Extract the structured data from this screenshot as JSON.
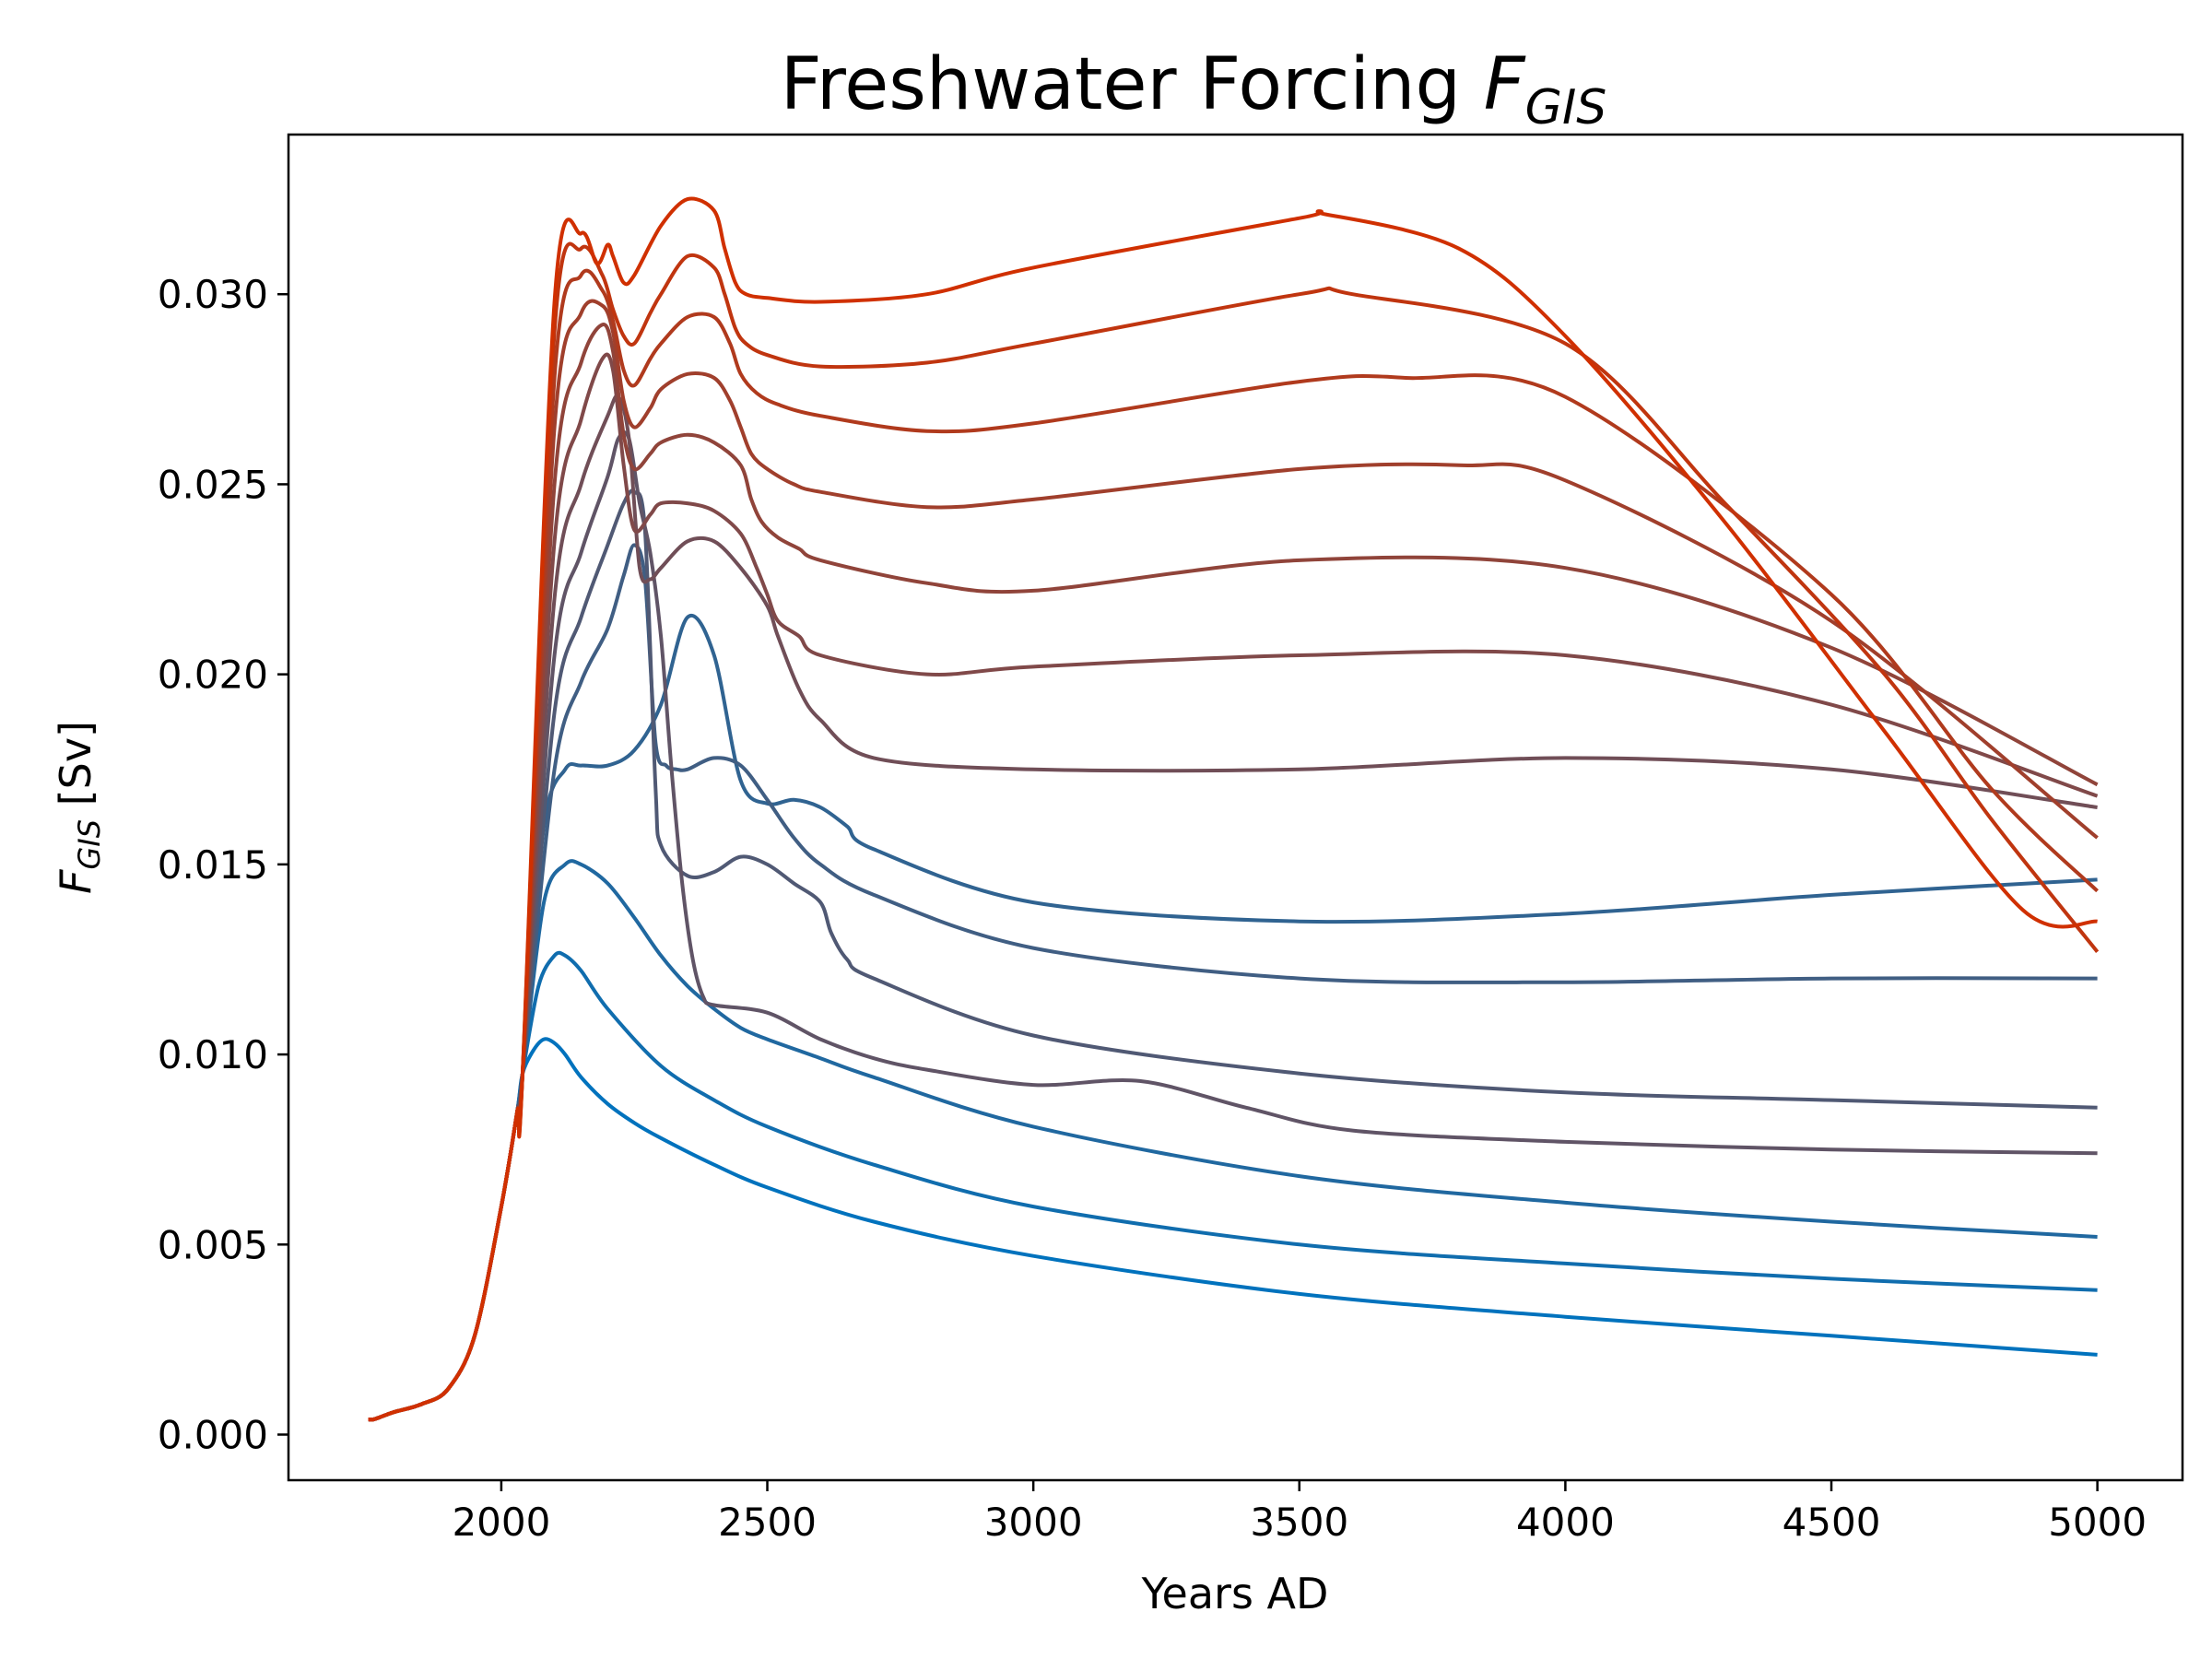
{
  "chart_data": {
    "type": "line",
    "title": "Freshwater Forcing ",
    "title_symbol": "F",
    "title_subscript": "GIS",
    "xlabel": "Years AD",
    "ylabel_symbol": "F",
    "ylabel_subscript": "GIS",
    "ylabel_unit": " [Sv]",
    "xlim": [
      1600,
      5160
    ],
    "ylim": [
      -0.0012,
      0.0342
    ],
    "xticks": [
      2000,
      2500,
      3000,
      3500,
      4000,
      4500,
      5000
    ],
    "yticks": [
      0.0,
      0.005,
      0.01,
      0.015,
      0.02,
      0.025,
      0.03
    ],
    "ytick_labels": [
      "0.000",
      "0.005",
      "0.010",
      "0.015",
      "0.020",
      "0.025",
      "0.030"
    ],
    "grid": false,
    "colors": {
      "first_series": "#0072bd",
      "last_series": "#d03000",
      "axes": "#000000"
    },
    "common_start": {
      "x": [
        1750,
        1760,
        1780,
        1800,
        1850,
        1900,
        1950,
        2000,
        2030,
        2040
      ],
      "y": [
        0.0004,
        0.0004,
        0.0005,
        0.0006,
        0.0008,
        0.0012,
        0.0026,
        0.006,
        0.0085,
        0.0095
      ]
    },
    "series": [
      {
        "x": [
          2040,
          2060,
          2080,
          2100,
          2120,
          2150,
          2200,
          2250,
          2300,
          2400,
          2500,
          2700,
          3000,
          3500,
          4000,
          4500,
          5000
        ],
        "y": [
          0.0095,
          0.0101,
          0.0104,
          0.0103,
          0.01,
          0.0094,
          0.0087,
          0.0082,
          0.0078,
          0.0071,
          0.0065,
          0.0056,
          0.0047,
          0.0037,
          0.0031,
          0.0026,
          0.0021
        ]
      },
      {
        "x": [
          2040,
          2070,
          2100,
          2120,
          2150,
          2200,
          2300,
          2400,
          2500,
          2700,
          3000,
          3500,
          4000,
          4500,
          5000
        ],
        "y": [
          0.0097,
          0.0118,
          0.0126,
          0.0126,
          0.0122,
          0.0112,
          0.0097,
          0.0088,
          0.0081,
          0.0071,
          0.006,
          0.005,
          0.0045,
          0.0041,
          0.0038
        ]
      },
      {
        "x": [
          2040,
          2080,
          2120,
          2150,
          2200,
          2250,
          2300,
          2350,
          2400,
          2450,
          2500,
          2600,
          2700,
          3000,
          3500,
          4000,
          4500,
          5000
        ],
        "y": [
          0.01,
          0.014,
          0.015,
          0.015,
          0.0145,
          0.0136,
          0.0126,
          0.0118,
          0.0112,
          0.0107,
          0.0104,
          0.0099,
          0.0094,
          0.0081,
          0.0068,
          0.0061,
          0.0056,
          0.0052
        ]
      },
      {
        "x": [
          2040,
          2080,
          2120,
          2150,
          2200,
          2250,
          2300,
          2350,
          2400,
          2450,
          2500,
          2550,
          2600,
          2650,
          2700,
          3000,
          3500,
          4000,
          4500,
          5000
        ],
        "y": [
          0.0103,
          0.016,
          0.0175,
          0.0176,
          0.0176,
          0.018,
          0.0192,
          0.0215,
          0.0205,
          0.0172,
          0.0166,
          0.0167,
          0.0165,
          0.016,
          0.0154,
          0.014,
          0.0135,
          0.0137,
          0.0142,
          0.0146
        ]
      },
      {
        "x": [
          2040,
          2100,
          2150,
          2200,
          2230,
          2250,
          2270,
          2290,
          2310,
          2330,
          2350,
          2400,
          2450,
          2500,
          2550,
          2600,
          2700,
          3000,
          3500,
          4000,
          4500,
          5000
        ],
        "y": [
          0.0106,
          0.0175,
          0.0198,
          0.0212,
          0.0226,
          0.0234,
          0.0225,
          0.0182,
          0.0176,
          0.0175,
          0.0175,
          0.0178,
          0.0176,
          0.0167,
          0.0157,
          0.015,
          0.0142,
          0.0128,
          0.012,
          0.0119,
          0.012,
          0.012
        ]
      },
      {
        "x": [
          2040,
          2100,
          2150,
          2200,
          2230,
          2250,
          2270,
          2290,
          2300,
          2350,
          2400,
          2450,
          2500,
          2550,
          2600,
          2620,
          2650,
          2700,
          3000,
          3500,
          4000,
          4500,
          5000
        ],
        "y": [
          0.0109,
          0.019,
          0.0215,
          0.0234,
          0.0245,
          0.0248,
          0.0238,
          0.017,
          0.0155,
          0.0147,
          0.0148,
          0.0152,
          0.015,
          0.0145,
          0.014,
          0.0132,
          0.0125,
          0.012,
          0.0105,
          0.0095,
          0.009,
          0.0088,
          0.0086
        ]
      },
      {
        "x": [
          2040,
          2100,
          2150,
          2200,
          2220,
          2240,
          2260,
          2280,
          2300,
          2320,
          2340,
          2360,
          2380,
          2400,
          2500,
          2600,
          2700,
          2800,
          3000,
          3200,
          3400,
          3600,
          4000,
          4500,
          5000
        ],
        "y": [
          0.0112,
          0.0205,
          0.0232,
          0.0252,
          0.0262,
          0.0262,
          0.0245,
          0.0232,
          0.021,
          0.0175,
          0.0145,
          0.0125,
          0.0115,
          0.0113,
          0.0111,
          0.0104,
          0.0099,
          0.0096,
          0.0092,
          0.0093,
          0.0086,
          0.008,
          0.0077,
          0.0075,
          0.0074
        ]
      },
      {
        "x": [
          2040,
          2100,
          2150,
          2200,
          2220,
          2240,
          2260,
          2280,
          2300,
          2350,
          2400,
          2450,
          2500,
          2520,
          2560,
          2600,
          2700,
          3000,
          3500,
          4000,
          4500,
          5000
        ],
        "y": [
          0.0115,
          0.022,
          0.025,
          0.0268,
          0.0273,
          0.0262,
          0.0228,
          0.0225,
          0.0228,
          0.0235,
          0.0235,
          0.0228,
          0.0218,
          0.021,
          0.0196,
          0.0188,
          0.0178,
          0.0175,
          0.0175,
          0.0178,
          0.0175,
          0.0165
        ]
      },
      {
        "x": [
          2040,
          2100,
          2150,
          2190,
          2210,
          2230,
          2250,
          2280,
          2300,
          2350,
          2400,
          2450,
          2480,
          2500,
          2520,
          2560,
          2600,
          2800,
          3000,
          3500,
          4000,
          4500,
          5000
        ],
        "y": [
          0.0118,
          0.0235,
          0.0267,
          0.0283,
          0.028,
          0.0255,
          0.0238,
          0.0242,
          0.0245,
          0.0245,
          0.0243,
          0.0237,
          0.0228,
          0.0221,
          0.0214,
          0.021,
          0.0205,
          0.02,
          0.0202,
          0.0205,
          0.0205,
          0.0192,
          0.0168
        ]
      },
      {
        "x": [
          2040,
          2100,
          2150,
          2190,
          2210,
          2230,
          2250,
          2280,
          2300,
          2350,
          2400,
          2450,
          2470,
          2490,
          2520,
          2560,
          2600,
          2800,
          3000,
          3500,
          4000,
          4500,
          5000
        ],
        "y": [
          0.0121,
          0.025,
          0.0282,
          0.0292,
          0.0285,
          0.0263,
          0.0254,
          0.0258,
          0.0261,
          0.0263,
          0.0261,
          0.0255,
          0.0246,
          0.024,
          0.0236,
          0.0233,
          0.023,
          0.0224,
          0.0222,
          0.023,
          0.0228,
          0.0207,
          0.0171
        ]
      },
      {
        "x": [
          2040,
          2100,
          2150,
          2190,
          2210,
          2230,
          2250,
          2280,
          2300,
          2350,
          2400,
          2430,
          2450,
          2470,
          2500,
          2550,
          2600,
          2800,
          3000,
          3500,
          3800,
          4000,
          4500,
          5000
        ],
        "y": [
          0.0124,
          0.0265,
          0.0295,
          0.0297,
          0.029,
          0.0272,
          0.0265,
          0.027,
          0.0275,
          0.0279,
          0.0278,
          0.0272,
          0.0265,
          0.0258,
          0.0254,
          0.025,
          0.0248,
          0.0244,
          0.0246,
          0.0254,
          0.0255,
          0.0251,
          0.0214,
          0.0157
        ]
      },
      {
        "x": [
          2040,
          2100,
          2150,
          2190,
          2210,
          2230,
          2250,
          2280,
          2300,
          2350,
          2400,
          2430,
          2450,
          2480,
          2520,
          2600,
          2800,
          3000,
          3500,
          3700,
          4000,
          4500,
          4800,
          5000
        ],
        "y": [
          0.0127,
          0.0278,
          0.0305,
          0.0301,
          0.0293,
          0.028,
          0.0276,
          0.0283,
          0.0287,
          0.0294,
          0.0294,
          0.0287,
          0.0279,
          0.0274,
          0.0271,
          0.0268,
          0.0264,
          0.0266,
          0.0277,
          0.0278,
          0.0273,
          0.0221,
          0.017,
          0.0143
        ]
      },
      {
        "x": [
          2040,
          2100,
          2150,
          2190,
          2210,
          2230,
          2250,
          2280,
          2300,
          2350,
          2400,
          2420,
          2440,
          2460,
          2500,
          2600,
          2800,
          3000,
          3500,
          3600,
          4000,
          4300,
          4600,
          4800,
          5000
        ],
        "y": [
          0.013,
          0.029,
          0.0312,
          0.0305,
          0.0296,
          0.0289,
          0.0287,
          0.0295,
          0.03,
          0.031,
          0.0307,
          0.03,
          0.0291,
          0.0287,
          0.0284,
          0.0281,
          0.0282,
          0.0287,
          0.03,
          0.03,
          0.0287,
          0.0245,
          0.02,
          0.0162,
          0.0127
        ]
      },
      {
        "x": [
          2040,
          2100,
          2150,
          2180,
          2200,
          2210,
          2230,
          2250,
          2300,
          2350,
          2400,
          2420,
          2440,
          2460,
          2500,
          2600,
          2800,
          3000,
          3500,
          3550,
          3800,
          4000,
          4300,
          4600,
          4860,
          5000
        ],
        "y": [
          0.0133,
          0.0298,
          0.0316,
          0.0308,
          0.0313,
          0.031,
          0.0303,
          0.0305,
          0.0318,
          0.0325,
          0.0322,
          0.0312,
          0.0303,
          0.03,
          0.0299,
          0.0298,
          0.03,
          0.0307,
          0.032,
          0.0321,
          0.0312,
          0.0289,
          0.024,
          0.0185,
          0.0138,
          0.0135
        ]
      }
    ]
  }
}
